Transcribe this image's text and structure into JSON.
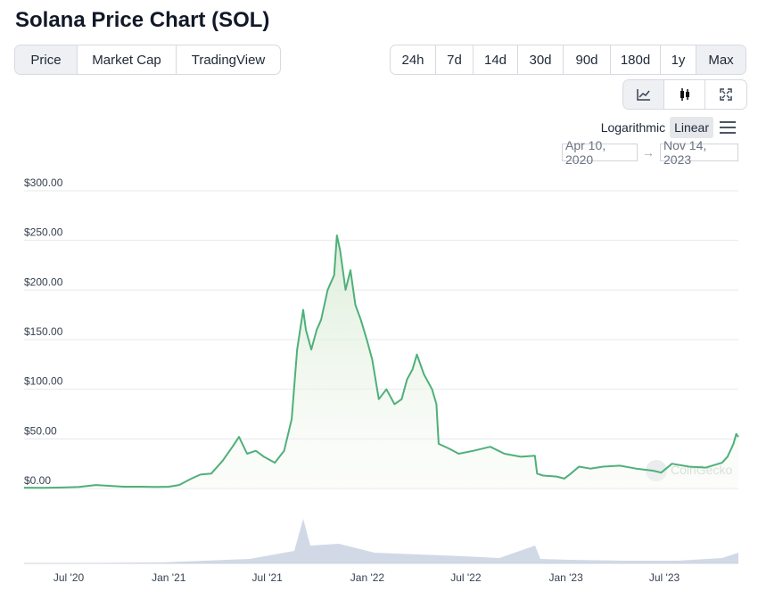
{
  "page": {
    "title": "Solana Price Chart (SOL)"
  },
  "tabs": [
    {
      "label": "Price",
      "active": true
    },
    {
      "label": "Market Cap",
      "active": false
    },
    {
      "label": "TradingView",
      "active": false
    }
  ],
  "ranges": [
    {
      "label": "24h",
      "active": false
    },
    {
      "label": "7d",
      "active": false
    },
    {
      "label": "14d",
      "active": false
    },
    {
      "label": "30d",
      "active": false
    },
    {
      "label": "90d",
      "active": false
    },
    {
      "label": "180d",
      "active": false
    },
    {
      "label": "1y",
      "active": false
    },
    {
      "label": "Max",
      "active": true
    }
  ],
  "chart_types": [
    {
      "icon": "line-chart-icon",
      "active": true
    },
    {
      "icon": "candlestick-icon",
      "active": false
    },
    {
      "icon": "fullscreen-icon",
      "active": false
    }
  ],
  "scale": {
    "log_label": "Logarithmic",
    "linear_label": "Linear",
    "active": "linear"
  },
  "date_range": {
    "from": "Apr 10, 2020",
    "to": "Nov 14, 2023"
  },
  "colors": {
    "line": "#4fb07a",
    "volume": "#c7cfe0",
    "grid": "#e6e8ec"
  },
  "chart_data": {
    "type": "area",
    "yticks": [
      "$0.00",
      "$50.00",
      "$100.00",
      "$150.00",
      "$200.00",
      "$250.00",
      "$300.00"
    ],
    "ylim": [
      0,
      300
    ],
    "xticks": [
      {
        "label": "Jul '20",
        "date": "2020-07-01"
      },
      {
        "label": "Jan '21",
        "date": "2021-01-01"
      },
      {
        "label": "Jul '21",
        "date": "2021-07-01"
      },
      {
        "label": "Jan '22",
        "date": "2022-01-01"
      },
      {
        "label": "Jul '22",
        "date": "2022-07-01"
      },
      {
        "label": "Jan '23",
        "date": "2023-01-01"
      },
      {
        "label": "Jul '23",
        "date": "2023-07-01"
      }
    ],
    "watermark": "CoinGecko",
    "series": [
      {
        "x": [
          "2020-04-10",
          "2020-05-15",
          "2020-06-20",
          "2020-07-20",
          "2020-08-20",
          "2020-09-10",
          "2020-10-10",
          "2020-11-10",
          "2020-12-10",
          "2021-01-01",
          "2021-01-20",
          "2021-02-10",
          "2021-02-28",
          "2021-03-20",
          "2021-04-10",
          "2021-04-28",
          "2021-05-10",
          "2021-05-25",
          "2021-06-10",
          "2021-06-25",
          "2021-07-15",
          "2021-08-01",
          "2021-08-15",
          "2021-08-25",
          "2021-09-05",
          "2021-09-10",
          "2021-09-20",
          "2021-09-30",
          "2021-10-08",
          "2021-10-20",
          "2021-11-01",
          "2021-11-06",
          "2021-11-12",
          "2021-11-22",
          "2021-12-01",
          "2021-12-10",
          "2021-12-20",
          "2021-12-31",
          "2022-01-10",
          "2022-01-22",
          "2022-02-05",
          "2022-02-20",
          "2022-03-05",
          "2022-03-15",
          "2022-03-25",
          "2022-04-02",
          "2022-04-15",
          "2022-04-30",
          "2022-05-08",
          "2022-05-12",
          "2022-06-01",
          "2022-06-18",
          "2022-07-15",
          "2022-08-15",
          "2022-09-10",
          "2022-10-10",
          "2022-11-05",
          "2022-11-09",
          "2022-11-20",
          "2022-12-15",
          "2022-12-29",
          "2023-01-10",
          "2023-01-25",
          "2023-02-15",
          "2023-03-10",
          "2023-04-10",
          "2023-05-10",
          "2023-06-10",
          "2023-06-25",
          "2023-07-15",
          "2023-08-15",
          "2023-09-15",
          "2023-10-15",
          "2023-10-25",
          "2023-11-05",
          "2023-11-10",
          "2023-11-14"
        ],
        "values": [
          0.8,
          0.7,
          1.0,
          1.5,
          3.5,
          2.8,
          1.8,
          1.8,
          1.6,
          1.8,
          3.5,
          9.5,
          14,
          15,
          28,
          42,
          52,
          35,
          38,
          32,
          26,
          38,
          70,
          140,
          180,
          160,
          140,
          160,
          170,
          200,
          215,
          255,
          240,
          200,
          220,
          185,
          170,
          150,
          130,
          90,
          100,
          85,
          90,
          110,
          120,
          135,
          115,
          100,
          85,
          45,
          40,
          35,
          38,
          42,
          35,
          32,
          33,
          15,
          13,
          12,
          10,
          15,
          22,
          20,
          22,
          23,
          20,
          18,
          16,
          25,
          22,
          21,
          26,
          32,
          45,
          55,
          52
        ]
      }
    ]
  }
}
